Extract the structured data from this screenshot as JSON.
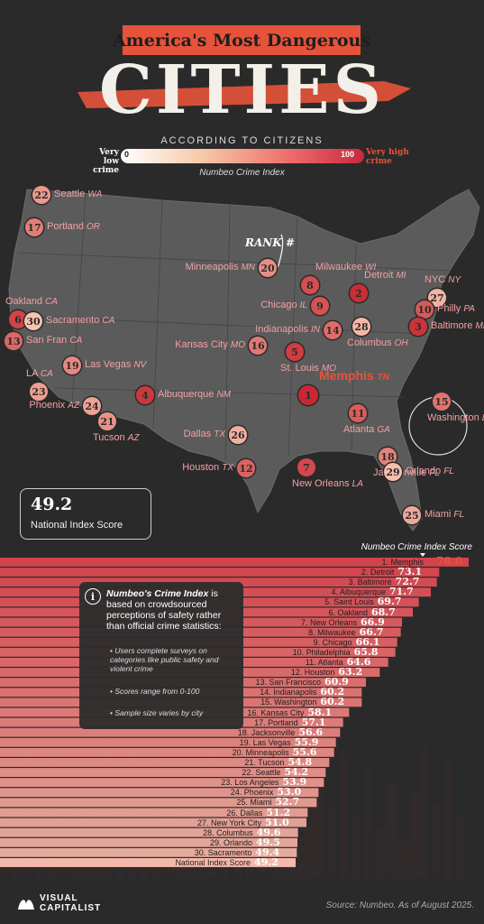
{
  "header": {
    "title": "America's Most Dangerous",
    "big_word": "CITIES",
    "subtitle": "ACCORDING TO CITIZENS",
    "legend_low": "Very low crime",
    "legend_high": "Very high crime",
    "scale_min": "0",
    "scale_max": "100",
    "index_label": "Numbeo Crime Index"
  },
  "map": {
    "rank_label": "RANK #",
    "national_score": "49.2",
    "national_label": "National Index Score",
    "cities": [
      {
        "rank": "22",
        "city": "Seattle",
        "state": "WA"
      },
      {
        "rank": "17",
        "city": "Portland",
        "state": "OR"
      },
      {
        "rank": "20",
        "city": "Minneapolis",
        "state": "MN"
      },
      {
        "rank": "8",
        "city": "Milwaukee",
        "state": "WI"
      },
      {
        "rank": "2",
        "city": "Detroit",
        "state": "MI"
      },
      {
        "rank": "27",
        "city": "NYC",
        "state": "NY"
      },
      {
        "rank": "9",
        "city": "Chicago",
        "state": "IL"
      },
      {
        "rank": "10",
        "city": "Philly",
        "state": "PA"
      },
      {
        "rank": "3",
        "city": "Baltimore",
        "state": "MD"
      },
      {
        "rank": "14",
        "city": "Indianapolis",
        "state": "IN"
      },
      {
        "rank": "28",
        "city": "Columbus",
        "state": "OH"
      },
      {
        "rank": "6",
        "city": "Oakland",
        "state": "CA"
      },
      {
        "rank": "30",
        "city": "Sacramento",
        "state": "CA"
      },
      {
        "rank": "13",
        "city": "San Fran",
        "state": "CA"
      },
      {
        "rank": "16",
        "city": "Kansas City",
        "state": "MO"
      },
      {
        "rank": "5",
        "city": "St. Louis",
        "state": "MO"
      },
      {
        "rank": "19",
        "city": "Las Vegas",
        "state": "NV"
      },
      {
        "rank": "23",
        "city": "LA",
        "state": "CA"
      },
      {
        "rank": "4",
        "city": "Albuquerque",
        "state": "NM"
      },
      {
        "rank": "1",
        "city": "Memphis",
        "state": "TN"
      },
      {
        "rank": "24",
        "city": "Phoenix",
        "state": "AZ"
      },
      {
        "rank": "21",
        "city": "Tucson",
        "state": "AZ"
      },
      {
        "rank": "11",
        "city": "Atlanta",
        "state": "GA"
      },
      {
        "rank": "15",
        "city": "Washington",
        "state": "DC"
      },
      {
        "rank": "26",
        "city": "Dallas",
        "state": "TX"
      },
      {
        "rank": "12",
        "city": "Houston",
        "state": "TX"
      },
      {
        "rank": "7",
        "city": "New Orleans",
        "state": "LA"
      },
      {
        "rank": "18",
        "city": "Jacksonville",
        "state": "FL"
      },
      {
        "rank": "29",
        "city": "Orlando",
        "state": "FL"
      },
      {
        "rank": "25",
        "city": "Miami",
        "state": "FL"
      }
    ]
  },
  "info": {
    "heading_bold": "Numbeo's Crime Index",
    "heading_rest": " is based on crowdsourced perceptions of safety rather than official crime statistics:",
    "bullets": [
      "Users complete surveys on categories like public safety and violent crime",
      "Scores range from 0-100",
      "Sample size varies by city"
    ]
  },
  "chart_data": {
    "type": "bar",
    "title": "Numbeo Crime Index Score",
    "categories": [
      "1. Memphis",
      "2. Detroit",
      "3. Baltimore",
      "4. Albuquerque",
      "5. Saint Louis",
      "6. Oakland",
      "7. New Orleans",
      "8. Milwaukee",
      "9. Chicago",
      "10. Philadelphia",
      "11. Atlanta",
      "12. Houston",
      "13. San Francisco",
      "14. Indianapolis",
      "15. Washington",
      "16. Kansas City",
      "17. Portland",
      "18. Jacksonville",
      "19. Las Vegas",
      "20. Minneapolis",
      "21. Tucson",
      "22. Seattle",
      "23. Los Angeles",
      "24. Phoenix",
      "25. Miami",
      "26. Dallas",
      "27. New York City",
      "28. Columbus",
      "29. Orlando",
      "30. Sacramento",
      "National Index Score"
    ],
    "values": [
      78.0,
      73.1,
      72.7,
      71.7,
      69.7,
      68.7,
      66.9,
      66.7,
      66.1,
      65.8,
      64.6,
      63.2,
      60.9,
      60.2,
      60.2,
      58.1,
      57.1,
      56.6,
      55.9,
      55.6,
      54.8,
      54.2,
      53.9,
      53.0,
      52.7,
      51.2,
      51.0,
      49.6,
      49.5,
      49.4,
      49.2
    ],
    "value_labels": [
      "78.0",
      "73.1",
      "72.7",
      "71.7",
      "69.7",
      "68.7",
      "66.9",
      "66.7",
      "66.1",
      "65.8",
      "64.6",
      "63.2",
      "60.9",
      "60.2",
      "60.2",
      "58.1",
      "57.1",
      "56.6",
      "55.9",
      "55.6",
      "54.8",
      "54.2",
      "53.9",
      "53.0",
      "52.7",
      "51.2",
      "51.0",
      "49.6",
      "49.5",
      "49.4",
      "49.2"
    ]
  },
  "footer": {
    "logo_line1": "VISUAL",
    "logo_line2": "CAPITALIST",
    "source": "Source: Numbeo. As of August 2025."
  },
  "colors": {
    "accent": "#e6533a",
    "background": "#2a2a2a",
    "map_land": "#5b5b5b"
  }
}
